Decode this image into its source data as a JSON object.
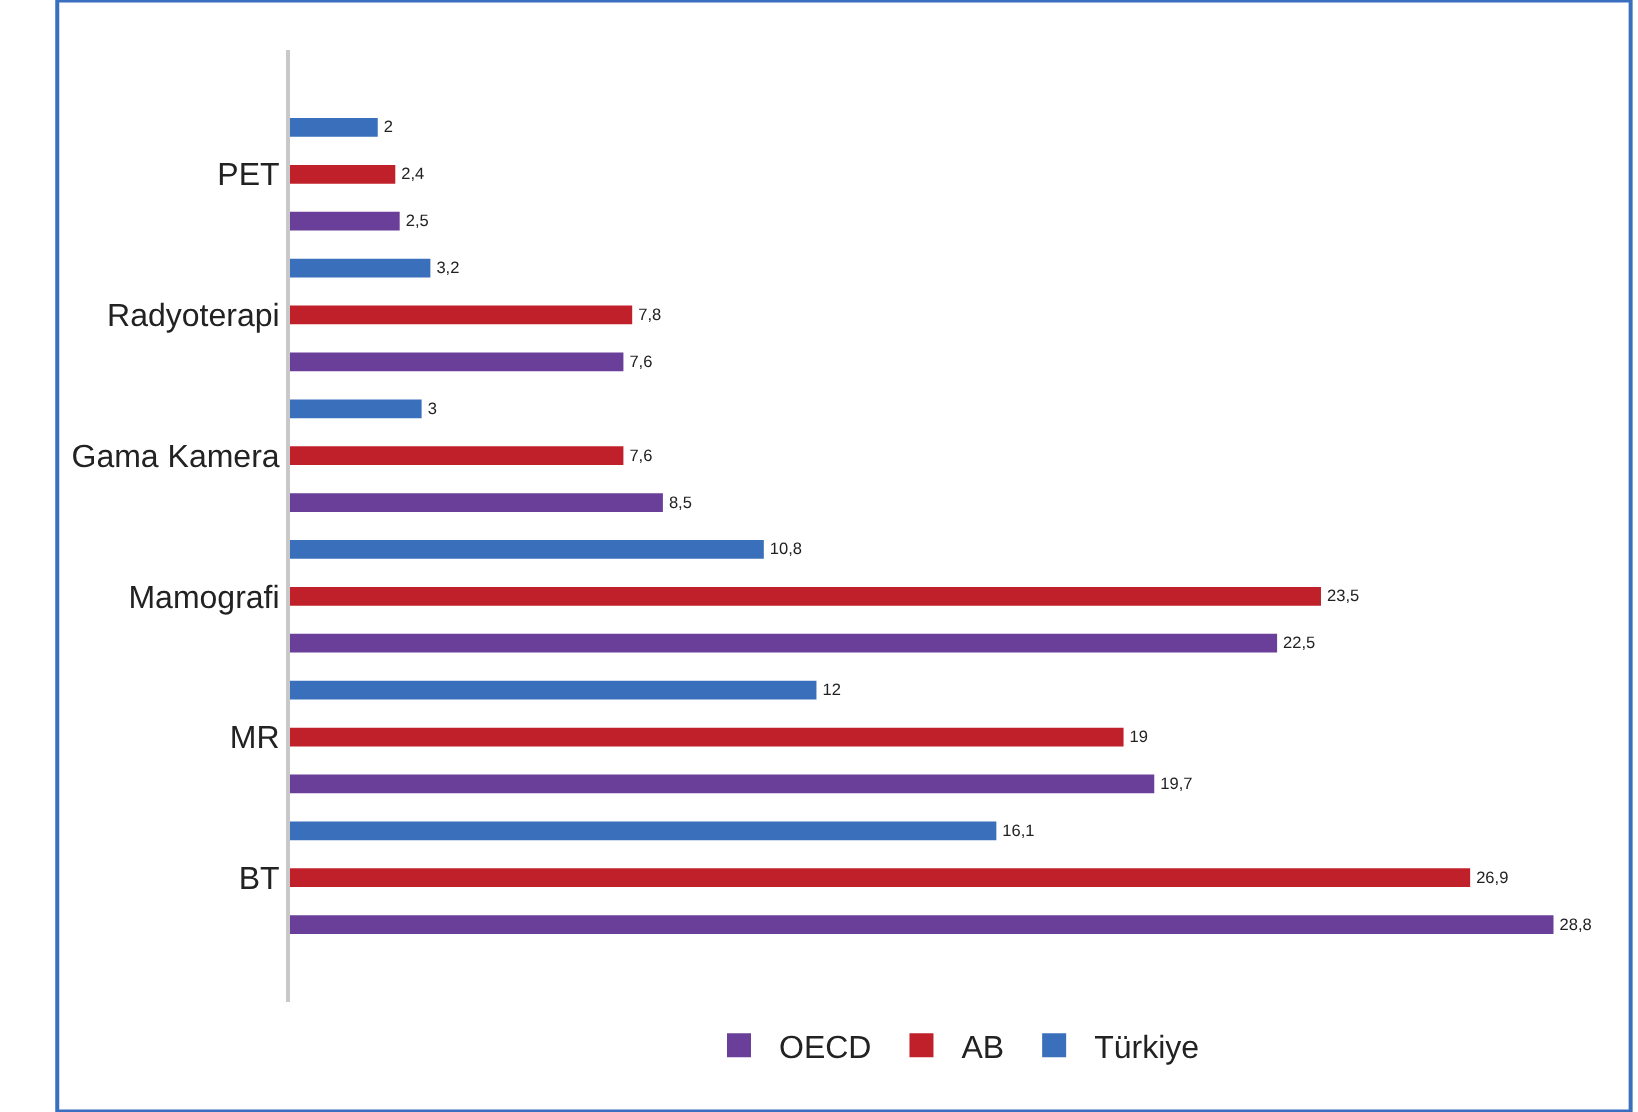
{
  "chart_data": {
    "type": "bar",
    "orientation": "horizontal",
    "categories": [
      "PET",
      "Radyoterapi",
      "Gama Kamera",
      "Mamografi",
      "MR",
      "BT"
    ],
    "series": [
      {
        "name": "OECD",
        "color": "#6a3f9a",
        "values": [
          2.5,
          7.6,
          8.5,
          22.5,
          19.7,
          28.8
        ],
        "value_labels": [
          "2,5",
          "7,6",
          "8,5",
          "22,5",
          "19,7",
          "28,8"
        ]
      },
      {
        "name": "AB",
        "color": "#c0202a",
        "values": [
          2.4,
          7.8,
          7.6,
          23.5,
          19,
          26.9
        ],
        "value_labels": [
          "2,4",
          "7,8",
          "7,6",
          "23,5",
          "19",
          "26,9"
        ]
      },
      {
        "name": "Türkiye",
        "color": "#3a70bb",
        "values": [
          2,
          3.2,
          3,
          10.8,
          12,
          16.1
        ],
        "value_labels": [
          "2",
          "3,2",
          "3",
          "10,8",
          "12",
          "16,1"
        ]
      }
    ],
    "tick_labels": "y",
    "legend": "bottom"
  }
}
